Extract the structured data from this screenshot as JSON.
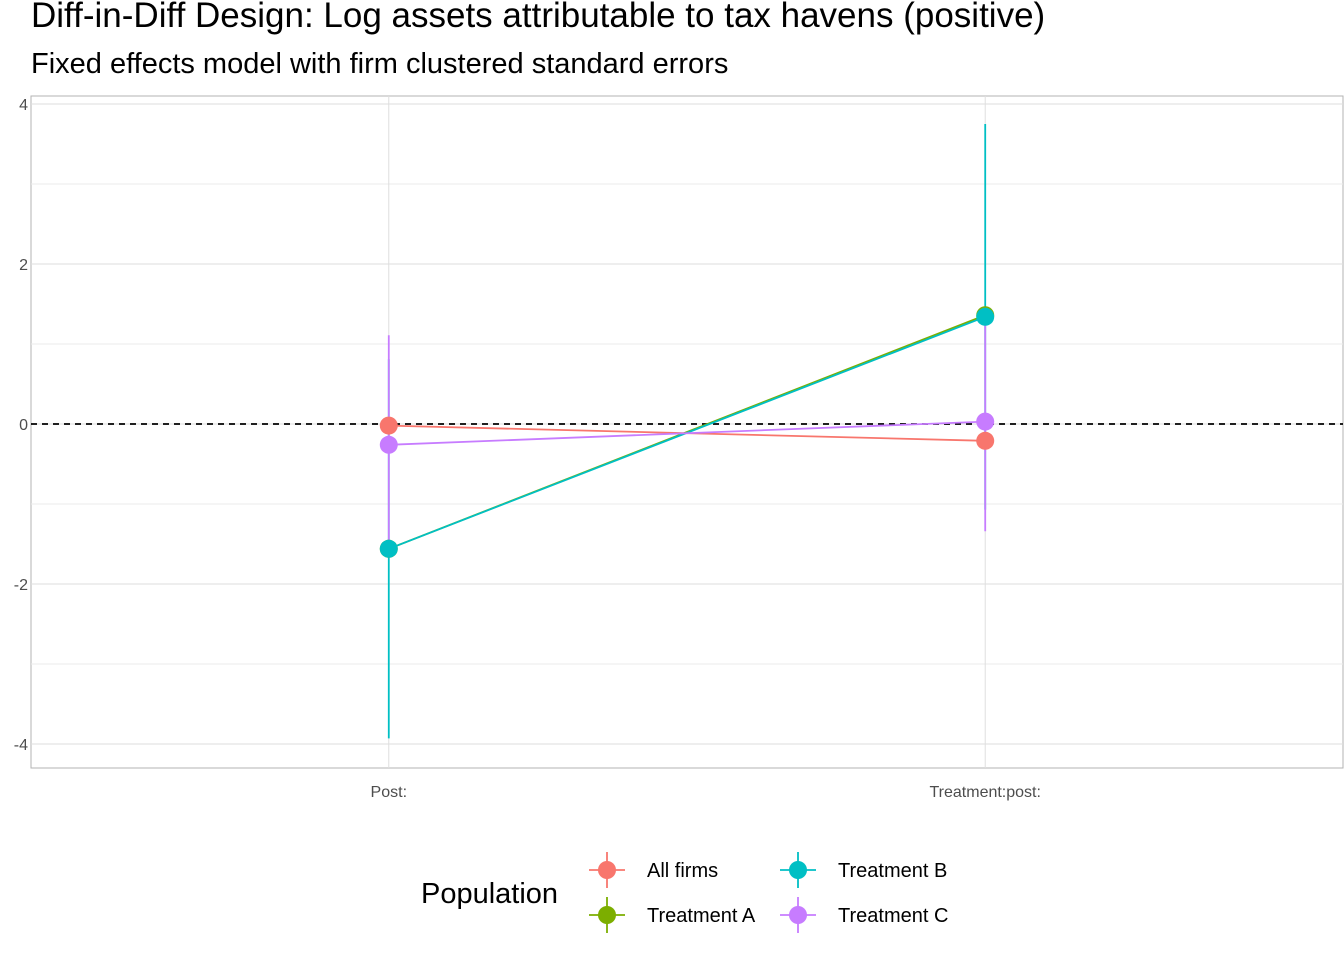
{
  "chart_data": {
    "type": "line",
    "title": "Diff-in-Diff Design: Log assets attributable to tax havens (positive)",
    "subtitle": "Fixed effects model with firm clustered standard errors",
    "xlabel": "",
    "ylabel": "",
    "categories": [
      "Post:",
      "Treatment:post:"
    ],
    "ylim": [
      -4.3,
      4.1
    ],
    "y_ticks": [
      -4,
      -2,
      0,
      2,
      4
    ],
    "y_tick_labels": [
      "-4",
      "-2",
      "0",
      "2",
      "4"
    ],
    "reference_line": 0,
    "grid": true,
    "legend": {
      "title": "Population",
      "placement": "bottom"
    },
    "series": [
      {
        "name": "All firms",
        "color": "#F8766D",
        "values": [
          -0.02,
          -0.21
        ],
        "ci_low": [
          null,
          null
        ],
        "ci_high": [
          null,
          null
        ]
      },
      {
        "name": "Treatment A",
        "color": "#7CAE00",
        "values": [
          -1.56,
          1.36
        ],
        "ci_low": [
          null,
          null
        ],
        "ci_high": [
          null,
          null
        ]
      },
      {
        "name": "Treatment B",
        "color": "#00BFC4",
        "values": [
          -1.56,
          1.34
        ],
        "ci_low": [
          -3.93,
          -1.07
        ],
        "ci_high": [
          0.81,
          3.75
        ]
      },
      {
        "name": "Treatment C",
        "color": "#C77CFF",
        "values": [
          -0.26,
          0.03
        ],
        "ci_low": [
          -1.63,
          -1.34
        ],
        "ci_high": [
          1.11,
          1.36
        ]
      }
    ]
  }
}
